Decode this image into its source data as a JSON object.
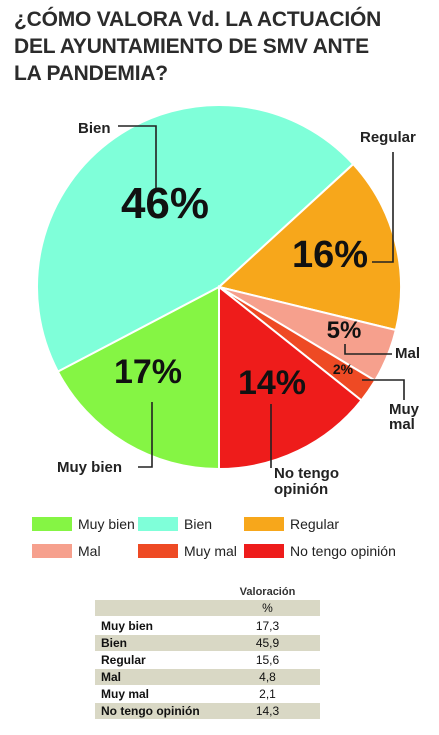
{
  "title_lines": [
    "¿CÓMO VALORA Vd. LA ACTUACIÓN",
    "DEL AYUNTAMIENTO DE SMV ANTE",
    "LA PANDEMIA?"
  ],
  "chart_data": {
    "type": "pie",
    "title": "¿CÓMO VALORA Vd. LA ACTUACIÓN DEL AYUNTAMIENTO DE SMV ANTE LA PANDEMIA?",
    "slices": [
      {
        "name": "Bien",
        "value": 45.9,
        "pct_label": "46%",
        "color": "#7fffd9"
      },
      {
        "name": "Regular",
        "value": 15.6,
        "pct_label": "16%",
        "color": "#f7a71b"
      },
      {
        "name": "Mal",
        "value": 4.8,
        "pct_label": "5%",
        "color": "#f6a08d"
      },
      {
        "name": "Muy mal",
        "value": 2.1,
        "pct_label": "2%",
        "color": "#ee4a24"
      },
      {
        "name": "No tengo opinión",
        "value": 14.3,
        "pct_label": "14%",
        "color": "#ee1c1b"
      },
      {
        "name": "Muy bien",
        "value": 17.3,
        "pct_label": "17%",
        "color": "#85f544"
      }
    ],
    "callouts": [
      {
        "key": "bien",
        "lines": [
          "Bien"
        ]
      },
      {
        "key": "regular",
        "lines": [
          "Regular"
        ]
      },
      {
        "key": "mal",
        "lines": [
          "Mal"
        ]
      },
      {
        "key": "muy_mal",
        "lines": [
          "Muy",
          "mal"
        ]
      },
      {
        "key": "no_opinion",
        "lines": [
          "No tengo",
          "opinión"
        ]
      },
      {
        "key": "muy_bien",
        "lines": [
          "Muy bien"
        ]
      }
    ],
    "legend": [
      {
        "label": "Muy bien",
        "color": "#85f544"
      },
      {
        "label": "Bien",
        "color": "#7fffd9"
      },
      {
        "label": "Regular",
        "color": "#f7a71b"
      },
      {
        "label": "Mal",
        "color": "#f6a08d"
      },
      {
        "label": "Muy mal",
        "color": "#ee4a24"
      },
      {
        "label": "No tengo opinión",
        "color": "#ee1c1b"
      }
    ],
    "table": {
      "header": "Valoración",
      "unit": "%",
      "rows": [
        {
          "category": "Muy bien",
          "value": "17,3"
        },
        {
          "category": "Bien",
          "value": "45,9"
        },
        {
          "category": "Regular",
          "value": "15,6"
        },
        {
          "category": "Mal",
          "value": "4,8"
        },
        {
          "category": "Muy mal",
          "value": "2,1"
        },
        {
          "category": "No tengo opinión",
          "value": "14,3"
        }
      ]
    }
  }
}
